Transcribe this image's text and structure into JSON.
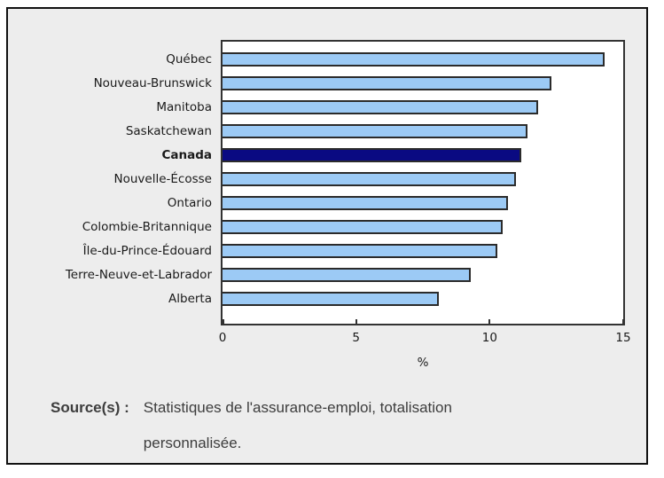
{
  "chart_data": {
    "type": "bar",
    "orientation": "horizontal",
    "title": "",
    "categories": [
      "Québec",
      "Nouveau-Brunswick",
      "Manitoba",
      "Saskatchewan",
      "Canada",
      "Nouvelle-Écosse",
      "Ontario",
      "Colombie-Britannique",
      "Île-du-Prince-Édouard",
      "Terre-Neuve-et-Labrador",
      "Alberta"
    ],
    "values": [
      14.3,
      12.3,
      11.8,
      11.4,
      11.2,
      11.0,
      10.7,
      10.5,
      10.3,
      9.3,
      8.1
    ],
    "highlight_category": "Canada",
    "xlabel": "%",
    "ylabel": "",
    "xlim": [
      0,
      15
    ],
    "xticks": [
      0,
      5,
      10,
      15
    ],
    "grid": false,
    "legend": "none"
  },
  "source": {
    "label": "Source(s) :",
    "lines": [
      "Statistiques de l'assurance-emploi, totalisation",
      "personnalisée."
    ]
  },
  "colors": {
    "page_bg": "#FFFFFF",
    "panel_bg": "#EDEDED",
    "panel_border": "#111111",
    "plot_bg": "#FFFFFF",
    "plot_border": "#333333",
    "bar_fill": "#9CCAF5",
    "bar_highlight": "#0A0A82",
    "bar_border": "#2B2B2B",
    "text": "#1A1A1A",
    "source_text": "#3D3D3D"
  }
}
